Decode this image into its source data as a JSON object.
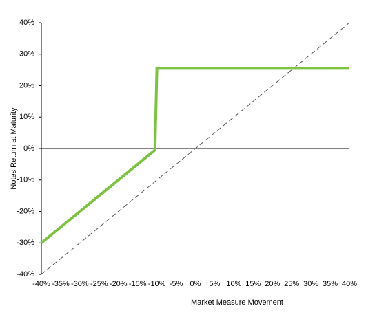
{
  "chart_data": {
    "type": "line",
    "xlabel": "Market Measure Movement",
    "ylabel": "Notes Return at Maturity",
    "xlim": [
      -40,
      40
    ],
    "ylim": [
      -40,
      40
    ],
    "xticks": [
      {
        "value": -40,
        "label": "-40%"
      },
      {
        "value": -35,
        "label": "-35%"
      },
      {
        "value": -30,
        "label": "-30%"
      },
      {
        "value": -25,
        "label": "-25%"
      },
      {
        "value": -20,
        "label": "-20%"
      },
      {
        "value": -15,
        "label": "-15%"
      },
      {
        "value": -10,
        "label": "-10%"
      },
      {
        "value": -5,
        "label": "-5%"
      },
      {
        "value": 0,
        "label": "0%"
      },
      {
        "value": 5,
        "label": "5%"
      },
      {
        "value": 10,
        "label": "10%"
      },
      {
        "value": 15,
        "label": "15%"
      },
      {
        "value": 20,
        "label": "20%"
      },
      {
        "value": 25,
        "label": "25%"
      },
      {
        "value": 30,
        "label": "30%"
      },
      {
        "value": 35,
        "label": "35%"
      },
      {
        "value": 40,
        "label": "40%"
      }
    ],
    "yticks": [
      {
        "value": -40,
        "label": "-40%"
      },
      {
        "value": -30,
        "label": "-30%"
      },
      {
        "value": -20,
        "label": "-20%"
      },
      {
        "value": -10,
        "label": "-10%"
      },
      {
        "value": 0,
        "label": "0%"
      },
      {
        "value": 10,
        "label": "10%"
      },
      {
        "value": 20,
        "label": "20%"
      },
      {
        "value": 30,
        "label": "30%"
      },
      {
        "value": 40,
        "label": "40%"
      }
    ],
    "series": [
      {
        "x": [
          -40,
          40
        ],
        "values": [
          -40,
          40
        ],
        "color": "#555555",
        "dash": true,
        "width": 1
      },
      {
        "x": [
          -40,
          -10.5,
          -10,
          40
        ],
        "values": [
          -30,
          -0.5,
          25.5,
          25.5
        ],
        "color": "#7dc242",
        "dash": false,
        "width": 4
      }
    ]
  }
}
